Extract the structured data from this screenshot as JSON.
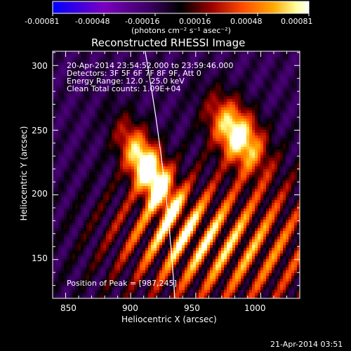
{
  "title": "Reconstructed RHESSI Image",
  "colorbar": {
    "min_value": -0.00081,
    "max_value": 0.00081,
    "tick_labels": [
      "-0.00081",
      "-0.00048",
      "-0.00016",
      "0.00016",
      "0.00048",
      "0.00081"
    ],
    "unit_label": "(photons cm⁻² s⁻¹ asec⁻²)",
    "colors": [
      "#0000ff",
      "#7a00c0",
      "#3a0060",
      "#000000",
      "#9a0000",
      "#ff4a00",
      "#ffa800",
      "#ffff9a",
      "#ffffff"
    ]
  },
  "axes": {
    "x_label": "Heliocentric X (arcsec)",
    "y_label": "Heliocentric Y (arcsec)",
    "x_range": [
      840,
      1030
    ],
    "y_range": [
      120,
      311
    ],
    "x_ticks": [
      850,
      900,
      950,
      1000
    ],
    "y_ticks": [
      150,
      200,
      250,
      300
    ]
  },
  "annotations": {
    "time_range": "20-Apr-2014 23:54:52.000 to 23:59:46.000",
    "detectors": "Detectors: 3F 5F 6F 7F 8F 9F, Att 0",
    "energy": "Energy Range: 12.0 - 25.0 keV",
    "method": "Clean     Total counts: 1.09E+04",
    "peak": "Position of Peak = [987,245]"
  },
  "peak_position": [
    987,
    245
  ],
  "footer_timestamp": "21-Apr-2014 03:51",
  "limb_line_color": "#ffffff"
}
